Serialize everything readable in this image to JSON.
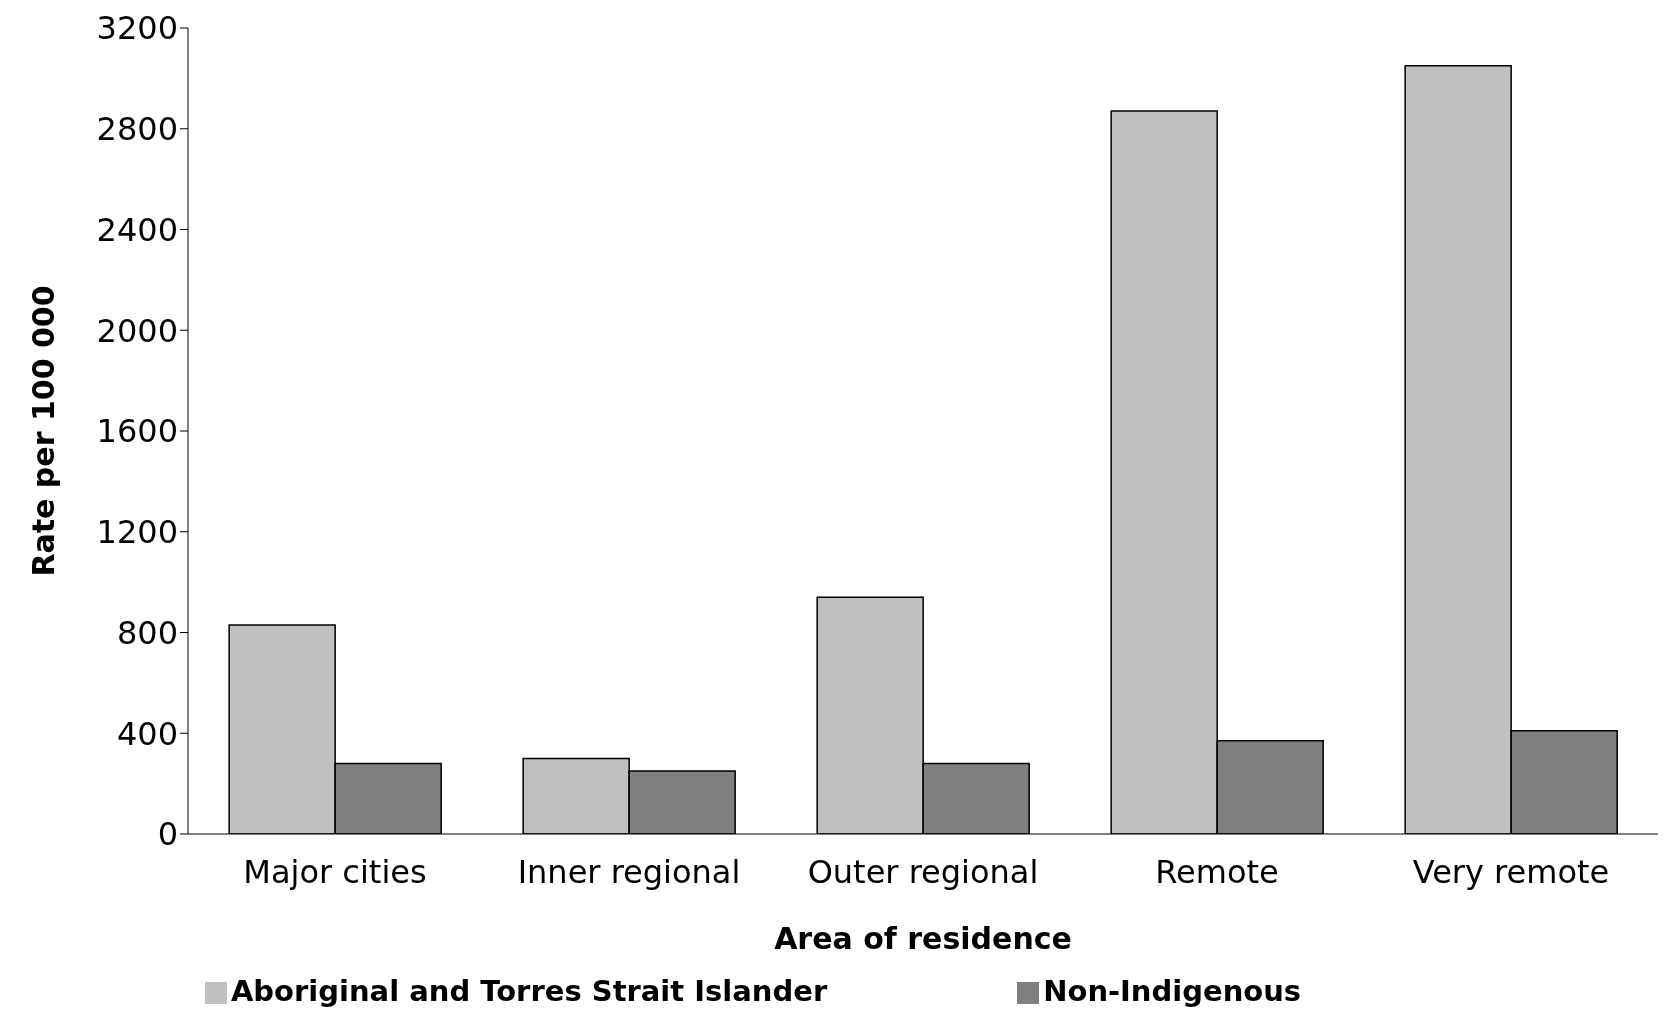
{
  "chart_data": {
    "type": "bar",
    "xlabel": "Area of residence",
    "ylabel": "Rate per 100 000",
    "categories": [
      "Major cities",
      "Inner regional",
      "Outer regional",
      "Remote",
      "Very remote"
    ],
    "series": [
      {
        "name": "Aboriginal and Torres Strait Islander",
        "color": "#c0c0c0",
        "values": [
          830,
          300,
          940,
          2870,
          3050
        ]
      },
      {
        "name": "Non-Indigenous",
        "color": "#808080",
        "values": [
          280,
          250,
          280,
          370,
          410
        ]
      }
    ],
    "ylim": [
      0,
      3200
    ],
    "yticks": [
      0,
      400,
      800,
      1200,
      1600,
      2000,
      2400,
      2800,
      3200
    ],
    "grid": false,
    "legend": "bottom"
  }
}
